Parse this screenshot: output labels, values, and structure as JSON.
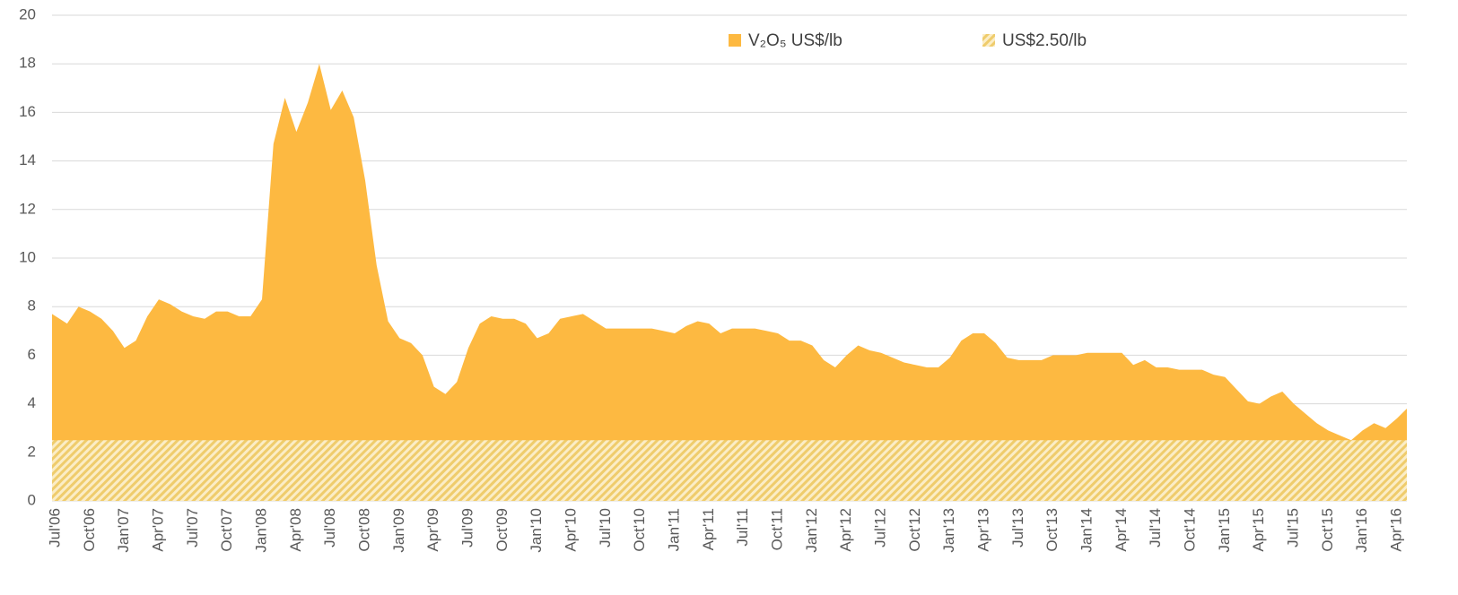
{
  "chart_data": {
    "type": "area",
    "categories": [
      "Jul'06",
      null,
      null,
      "Oct'06",
      null,
      null,
      "Jan'07",
      null,
      null,
      "Apr'07",
      null,
      null,
      "Jul'07",
      null,
      null,
      "Oct'07",
      null,
      null,
      "Jan'08",
      null,
      null,
      "Apr'08",
      null,
      null,
      "Jul'08",
      null,
      null,
      "Oct'08",
      null,
      null,
      "Jan'09",
      null,
      null,
      "Apr'09",
      null,
      null,
      "Jul'09",
      null,
      null,
      "Oct'09",
      null,
      null,
      "Jan'10",
      null,
      null,
      "Apr'10",
      null,
      null,
      "Jul'10",
      null,
      null,
      "Oct'10",
      null,
      null,
      "Jan'11",
      null,
      null,
      "Apr'11",
      null,
      null,
      "Jul'11",
      null,
      null,
      "Oct'11",
      null,
      null,
      "Jan'12",
      null,
      null,
      "Apr'12",
      null,
      null,
      "Jul'12",
      null,
      null,
      "Oct'12",
      null,
      null,
      "Jan'13",
      null,
      null,
      "Apr'13",
      null,
      null,
      "Jul'13",
      null,
      null,
      "Oct'13",
      null,
      null,
      "Jan'14",
      null,
      null,
      "Apr'14",
      null,
      null,
      "Jul'14",
      null,
      null,
      "Oct'14",
      null,
      null,
      "Jan'15",
      null,
      null,
      "Apr'15",
      null,
      null,
      "Jul'15",
      null,
      null,
      "Oct'15",
      null,
      null,
      "Jan'16",
      null,
      null,
      "Apr'16",
      null
    ],
    "series": [
      {
        "name": "V₂O₅ US$/lb",
        "color": "#fdb941",
        "values": [
          7.7,
          7.3,
          8.0,
          7.8,
          7.5,
          7.0,
          6.3,
          6.6,
          7.6,
          8.3,
          8.1,
          7.8,
          7.6,
          7.5,
          7.8,
          7.8,
          7.6,
          7.6,
          8.3,
          14.7,
          16.6,
          15.2,
          16.4,
          18.0,
          16.1,
          16.9,
          15.8,
          13.2,
          9.7,
          7.4,
          6.7,
          6.5,
          6.0,
          4.7,
          4.4,
          4.9,
          6.3,
          7.3,
          7.6,
          7.5,
          7.5,
          7.3,
          6.7,
          6.9,
          7.5,
          7.6,
          7.7,
          7.4,
          7.1,
          7.1,
          7.1,
          7.1,
          7.1,
          7.0,
          6.9,
          7.2,
          7.4,
          7.3,
          6.9,
          7.1,
          7.1,
          7.1,
          7.0,
          6.9,
          6.6,
          6.6,
          6.4,
          5.8,
          5.5,
          6.0,
          6.4,
          6.2,
          6.1,
          5.9,
          5.7,
          5.6,
          5.5,
          5.5,
          5.9,
          6.6,
          6.9,
          6.9,
          6.5,
          5.9,
          5.8,
          5.8,
          5.8,
          6.0,
          6.0,
          6.0,
          6.1,
          6.1,
          6.1,
          6.1,
          5.6,
          5.8,
          5.5,
          5.5,
          5.4,
          5.4,
          5.4,
          5.2,
          5.1,
          4.6,
          4.1,
          4.0,
          4.3,
          4.5,
          4.0,
          3.6,
          3.2,
          2.9,
          2.7,
          2.5,
          2.9,
          3.2,
          3.0,
          3.4,
          3.8
        ]
      },
      {
        "name": "US$2.50/lb",
        "color": "#f2cf6e",
        "pattern": "hatch",
        "values": [
          2.5,
          2.5,
          2.5,
          2.5,
          2.5,
          2.5,
          2.5,
          2.5,
          2.5,
          2.5,
          2.5,
          2.5,
          2.5,
          2.5,
          2.5,
          2.5,
          2.5,
          2.5,
          2.5,
          2.5,
          2.5,
          2.5,
          2.5,
          2.5,
          2.5,
          2.5,
          2.5,
          2.5,
          2.5,
          2.5,
          2.5,
          2.5,
          2.5,
          2.5,
          2.5,
          2.5,
          2.5,
          2.5,
          2.5,
          2.5,
          2.5,
          2.5,
          2.5,
          2.5,
          2.5,
          2.5,
          2.5,
          2.5,
          2.5,
          2.5,
          2.5,
          2.5,
          2.5,
          2.5,
          2.5,
          2.5,
          2.5,
          2.5,
          2.5,
          2.5,
          2.5,
          2.5,
          2.5,
          2.5,
          2.5,
          2.5,
          2.5,
          2.5,
          2.5,
          2.5,
          2.5,
          2.5,
          2.5,
          2.5,
          2.5,
          2.5,
          2.5,
          2.5,
          2.5,
          2.5,
          2.5,
          2.5,
          2.5,
          2.5,
          2.5,
          2.5,
          2.5,
          2.5,
          2.5,
          2.5,
          2.5,
          2.5,
          2.5,
          2.5,
          2.5,
          2.5,
          2.5,
          2.5,
          2.5,
          2.5,
          2.5,
          2.5,
          2.5,
          2.5,
          2.5,
          2.5,
          2.5,
          2.5,
          2.5,
          2.5,
          2.5,
          2.5,
          2.5,
          2.5,
          2.5,
          2.5,
          2.5,
          2.5,
          2.5
        ]
      }
    ],
    "ylim": [
      0,
      20
    ],
    "yticks": [
      0,
      2,
      4,
      6,
      8,
      10,
      12,
      14,
      16,
      18,
      20
    ],
    "grid": true
  }
}
